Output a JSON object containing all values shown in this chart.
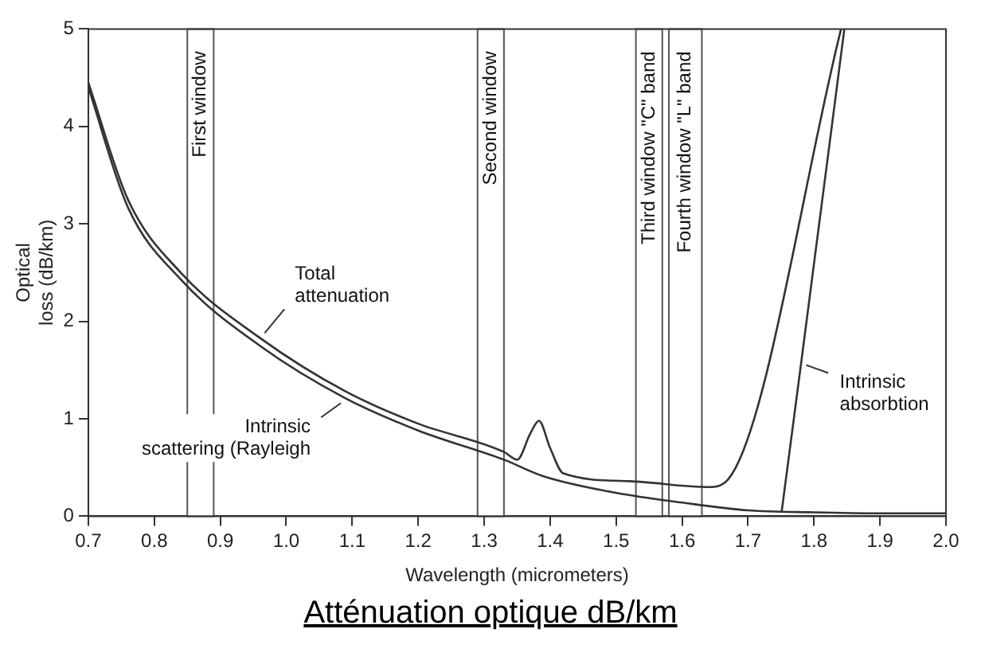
{
  "chart_data": {
    "type": "line",
    "xlabel": "Wavelength (micrometers)",
    "ylabel": "Optical loss (dB/km)",
    "xlim": [
      0.7,
      2.0
    ],
    "xticks": [
      {
        "value": 0.7,
        "label": "0.7"
      },
      {
        "value": 0.8,
        "label": "0.8"
      },
      {
        "value": 0.9,
        "label": "0.9"
      },
      {
        "value": 1.0,
        "label": "1.0"
      },
      {
        "value": 1.1,
        "label": "1.1"
      },
      {
        "value": 1.2,
        "label": "1.2"
      },
      {
        "value": 1.3,
        "label": "1.3"
      },
      {
        "value": 1.4,
        "label": "1.4"
      },
      {
        "value": 1.5,
        "label": "1.5"
      },
      {
        "value": 1.6,
        "label": "1.6"
      },
      {
        "value": 1.7,
        "label": "1.7"
      },
      {
        "value": 1.8,
        "label": "1.8"
      },
      {
        "value": 1.9,
        "label": "1.9"
      },
      {
        "value": 2.0,
        "label": "2.0"
      }
    ],
    "ylim": [
      0,
      5
    ],
    "yticks": [
      0,
      1,
      2,
      3,
      4,
      5
    ],
    "grid": false,
    "legend": false,
    "marker": "none",
    "line_style": "solid",
    "series": [
      {
        "color": "#333333",
        "x": [
          0.7,
          0.76,
          0.84,
          0.96,
          1.09,
          1.2,
          1.33,
          1.35,
          1.37,
          1.383,
          1.4,
          1.42,
          1.52,
          1.64,
          1.67,
          1.841
        ],
        "values": [
          4.45,
          3.25,
          2.5,
          1.83,
          1.28,
          0.95,
          0.66,
          0.58,
          0.85,
          0.98,
          0.7,
          0.44,
          0.36,
          0.3,
          0.38,
          5.0
        ]
      },
      {
        "color": "#333333",
        "x": [
          0.7,
          0.76,
          0.84,
          0.96,
          1.09,
          1.2,
          1.33,
          1.39,
          1.5,
          1.6,
          1.7,
          1.8,
          1.9,
          2.0
        ],
        "values": [
          4.4,
          3.17,
          2.43,
          1.75,
          1.21,
          0.88,
          0.58,
          0.41,
          0.24,
          0.14,
          0.06,
          0.04,
          0.03,
          0.03
        ]
      },
      {
        "color": "#333333",
        "x": [
          1.751,
          1.781,
          1.846
        ],
        "values": [
          0.05,
          1.6,
          5.0
        ]
      }
    ],
    "bands": [
      {
        "axis": "x",
        "from": 0.85,
        "to": 0.89,
        "label": "First window"
      },
      {
        "axis": "x",
        "from": 1.29,
        "to": 1.33,
        "label": "Second window"
      },
      {
        "axis": "x",
        "from": 1.53,
        "to": 1.57,
        "label": "Third window \"C\" band"
      },
      {
        "axis": "x",
        "from": 1.58,
        "to": 1.63,
        "label": "Fourth window \"L\" band"
      }
    ],
    "annotations": [
      {
        "text": "Total attenuation",
        "x": 0.96,
        "y": 1.83
      },
      {
        "text": "Intrinsic scattering (Rayleigh",
        "x": 1.09,
        "y": 1.21
      },
      {
        "text": "Intrinsic absorbtion",
        "x": 1.781,
        "y": 1.6
      },
      "Atténuation optique dB/km"
    ]
  }
}
